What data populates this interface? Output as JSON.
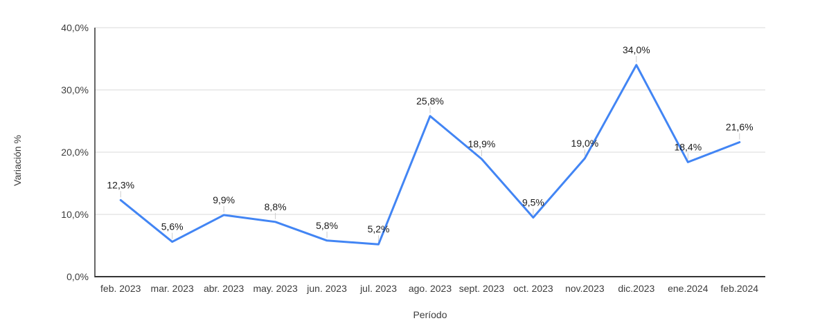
{
  "chart_data": {
    "type": "line",
    "title": "",
    "xlabel": "Período",
    "ylabel": "Variación %",
    "categories": [
      "feb. 2023",
      "mar. 2023",
      "abr. 2023",
      "may. 2023",
      "jun. 2023",
      "jul. 2023",
      "ago. 2023",
      "sept. 2023",
      "oct. 2023",
      "nov.2023",
      "dic.2023",
      "ene.2024",
      "feb.2024"
    ],
    "values": [
      12.3,
      5.6,
      9.9,
      8.8,
      5.8,
      5.2,
      25.8,
      18.9,
      9.5,
      19.0,
      34.0,
      18.4,
      21.6
    ],
    "value_labels": [
      "12,3%",
      "5,6%",
      "9,9%",
      "8,8%",
      "5,8%",
      "5,2%",
      "25,8%",
      "18,9%",
      "9,5%",
      "19,0%",
      "34,0%",
      "18,4%",
      "21,6%"
    ],
    "ylim": [
      0,
      40
    ],
    "yticks": [
      {
        "value": 0,
        "label": "0,0%"
      },
      {
        "value": 10,
        "label": "10,0%"
      },
      {
        "value": 20,
        "label": "20,0%"
      },
      {
        "value": 30,
        "label": "30,0%"
      },
      {
        "value": 40,
        "label": "40,0%"
      }
    ],
    "grid": true,
    "legend": "none",
    "colors": {
      "line": "#4285f4",
      "grid": "#d9d9d9",
      "axis": "#333333",
      "tick_text": "#3c3c3c",
      "label_text": "#1a1a1a",
      "stem": "#cccccc",
      "background": "#ffffff"
    }
  }
}
